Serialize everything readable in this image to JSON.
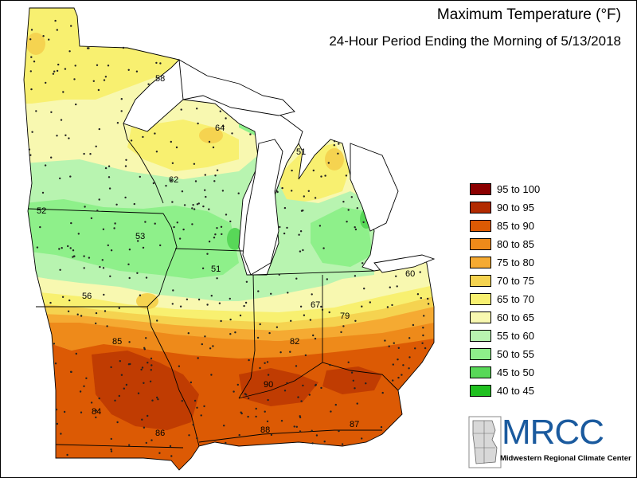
{
  "title": "Maximum Temperature (°F)",
  "subtitle": "24-Hour Period Ending the Morning of 5/13/2018",
  "legend": [
    {
      "label": "95 to 100",
      "color": "#8b0000"
    },
    {
      "label": "90 to 95",
      "color": "#b22a00"
    },
    {
      "label": "85 to 90",
      "color": "#dc5a04"
    },
    {
      "label": "80 to 85",
      "color": "#ee8a1a"
    },
    {
      "label": "75 to 80",
      "color": "#f5aa32"
    },
    {
      "label": "70 to 75",
      "color": "#f5d350"
    },
    {
      "label": "65 to 70",
      "color": "#f8f070"
    },
    {
      "label": "60 to 65",
      "color": "#f8f8b0"
    },
    {
      "label": "55 to 60",
      "color": "#b8f4b0"
    },
    {
      "label": "50 to 55",
      "color": "#8ef08a"
    },
    {
      "label": "45 to 50",
      "color": "#58d858"
    },
    {
      "label": "40 to 45",
      "color": "#20c020"
    }
  ],
  "map_labels": [
    "58",
    "64",
    "51",
    "62",
    "52",
    "53",
    "51",
    "56",
    "67",
    "60",
    "79",
    "85",
    "82",
    "90",
    "84",
    "86",
    "88",
    "87"
  ],
  "logo": {
    "name": "MRCC",
    "subtitle": "Midwestern Regional Climate Center"
  }
}
